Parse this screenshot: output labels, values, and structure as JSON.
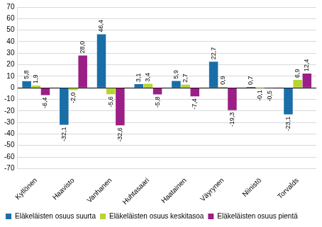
{
  "chart_data": {
    "type": "bar",
    "categories": [
      "Kyllönen",
      "Haavisto",
      "Vanhanen",
      "Huhtasaari",
      "Haatainen",
      "Väyrynen",
      "Niinistö",
      "Torvalds"
    ],
    "series": [
      {
        "name": "Eläkeläisten osuus suurta",
        "color": "#1a6ea8",
        "values": [
          5.8,
          -32.1,
          46.4,
          3.1,
          5.9,
          22.7,
          0.7,
          -23.1
        ],
        "value_labels": [
          "5,8",
          "-32,1",
          "46,4",
          "3,1",
          "5,9",
          "22,7",
          "0,7",
          "-23,1"
        ]
      },
      {
        "name": "Eläkeläisten osuus keskitasoa",
        "color": "#b8d432",
        "values": [
          1.9,
          -2.0,
          -5.6,
          3.4,
          2.7,
          0.9,
          -0.1,
          6.9
        ],
        "value_labels": [
          "1,9",
          "-2,0",
          "-5,6",
          "3,4",
          "2,7",
          "0,9",
          "-0,1",
          "6,9"
        ]
      },
      {
        "name": "Eläkeläisten osuus pientä",
        "color": "#9b1f86",
        "values": [
          -6.4,
          28.0,
          -32.6,
          -5.8,
          -7.4,
          -19.3,
          -0.5,
          12.4
        ],
        "value_labels": [
          "-6,4",
          "28,0",
          "-32,6",
          "-5,8",
          "-7,4",
          "-19,3",
          "-0,5",
          "12,4"
        ]
      }
    ],
    "ylim": [
      -70,
      70
    ],
    "yticks": [
      -70,
      -60,
      -50,
      -40,
      -30,
      -20,
      -10,
      0,
      10,
      20,
      30,
      40,
      50,
      60,
      70
    ],
    "grid": true,
    "legend": "bottom",
    "data_labels": true
  }
}
